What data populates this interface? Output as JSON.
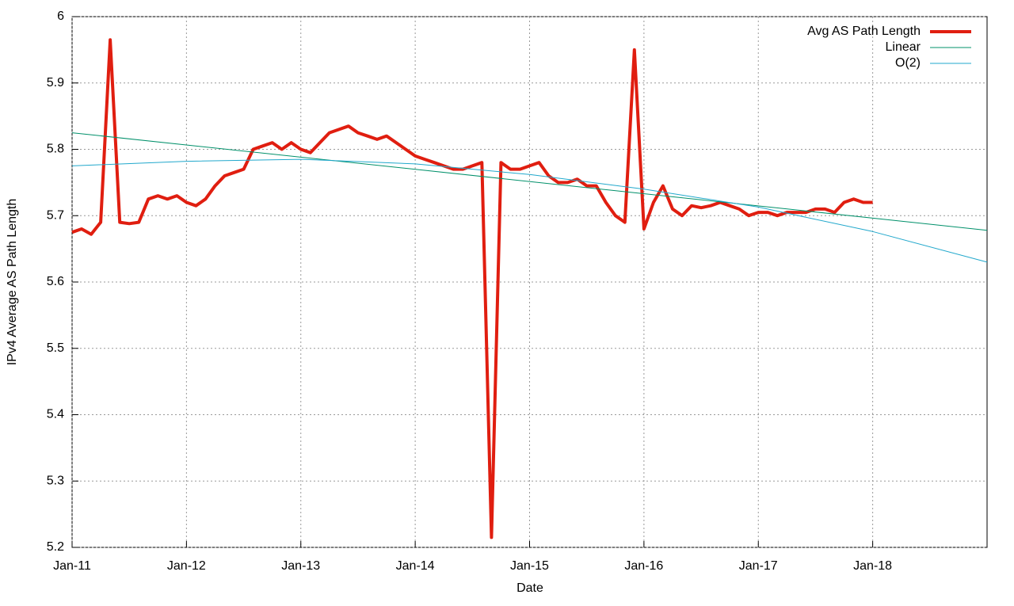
{
  "chart_data": {
    "type": "line",
    "x_label": "Date",
    "y_label": "IPv4 Average AS Path Length",
    "xlim": [
      "2011-01",
      "2019-01"
    ],
    "xticks": [
      {
        "value": "2011-01",
        "label": "Jan-11"
      },
      {
        "value": "2012-01",
        "label": "Jan-12"
      },
      {
        "value": "2013-01",
        "label": "Jan-13"
      },
      {
        "value": "2014-01",
        "label": "Jan-14"
      },
      {
        "value": "2015-01",
        "label": "Jan-15"
      },
      {
        "value": "2016-01",
        "label": "Jan-16"
      },
      {
        "value": "2017-01",
        "label": "Jan-17"
      },
      {
        "value": "2018-01",
        "label": "Jan-18"
      }
    ],
    "ylim": [
      5.2,
      6
    ],
    "yticks": [
      5.2,
      5.3,
      5.4,
      5.5,
      5.6,
      5.7,
      5.8,
      5.9,
      6
    ],
    "grid": true,
    "legend": "top-right",
    "series": [
      {
        "name": "Avg AS Path Length",
        "color": "#e01e10",
        "width": 4,
        "x": [
          "2011-01",
          "2011-02",
          "2011-03",
          "2011-04",
          "2011-05",
          "2011-06",
          "2011-07",
          "2011-08",
          "2011-09",
          "2011-10",
          "2011-11",
          "2011-12",
          "2012-01",
          "2012-02",
          "2012-03",
          "2012-04",
          "2012-05",
          "2012-06",
          "2012-07",
          "2012-08",
          "2012-09",
          "2012-10",
          "2012-11",
          "2012-12",
          "2013-01",
          "2013-02",
          "2013-03",
          "2013-04",
          "2013-05",
          "2013-06",
          "2013-07",
          "2013-08",
          "2013-09",
          "2013-10",
          "2013-11",
          "2013-12",
          "2014-01",
          "2014-02",
          "2014-03",
          "2014-04",
          "2014-05",
          "2014-06",
          "2014-07",
          "2014-08",
          "2014-09",
          "2014-10",
          "2014-11",
          "2014-12",
          "2015-01",
          "2015-02",
          "2015-03",
          "2015-04",
          "2015-05",
          "2015-06",
          "2015-07",
          "2015-08",
          "2015-09",
          "2015-10",
          "2015-11",
          "2015-12",
          "2016-01",
          "2016-02",
          "2016-03",
          "2016-04",
          "2016-05",
          "2016-06",
          "2016-07",
          "2016-08",
          "2016-09",
          "2016-10",
          "2016-11",
          "2016-12",
          "2017-01",
          "2017-02",
          "2017-03",
          "2017-04",
          "2017-05",
          "2017-06",
          "2017-07",
          "2017-08",
          "2017-09",
          "2017-10",
          "2017-11",
          "2017-12",
          "2018-01"
        ],
        "values": [
          5.675,
          5.68,
          5.672,
          5.69,
          5.965,
          5.69,
          5.688,
          5.69,
          5.725,
          5.73,
          5.725,
          5.73,
          5.72,
          5.715,
          5.725,
          5.745,
          5.76,
          5.765,
          5.77,
          5.8,
          5.805,
          5.81,
          5.8,
          5.81,
          5.8,
          5.795,
          5.81,
          5.825,
          5.83,
          5.835,
          5.825,
          5.82,
          5.815,
          5.82,
          5.81,
          5.8,
          5.79,
          5.785,
          5.78,
          5.775,
          5.77,
          5.77,
          5.775,
          5.78,
          5.215,
          5.78,
          5.77,
          5.77,
          5.775,
          5.78,
          5.76,
          5.75,
          5.75,
          5.755,
          5.745,
          5.745,
          5.72,
          5.7,
          5.69,
          5.95,
          5.68,
          5.72,
          5.745,
          5.71,
          5.7,
          5.715,
          5.712,
          5.715,
          5.72,
          5.715,
          5.71,
          5.7,
          5.705,
          5.705,
          5.7,
          5.705,
          5.705,
          5.705,
          5.71,
          5.71,
          5.705,
          5.72,
          5.725,
          5.72,
          5.72
        ]
      },
      {
        "name": "Linear",
        "color": "#00906a",
        "width": 1,
        "x": [
          "2011-01",
          "2019-01"
        ],
        "values": [
          5.825,
          5.678
        ]
      },
      {
        "name": "O(2)",
        "color": "#22a8cc",
        "width": 1,
        "x": [
          "2011-01",
          "2012-01",
          "2013-01",
          "2014-01",
          "2015-01",
          "2016-01",
          "2017-01",
          "2018-01",
          "2019-01"
        ],
        "values": [
          5.775,
          5.782,
          5.785,
          5.778,
          5.762,
          5.74,
          5.713,
          5.676,
          5.63
        ]
      }
    ]
  }
}
